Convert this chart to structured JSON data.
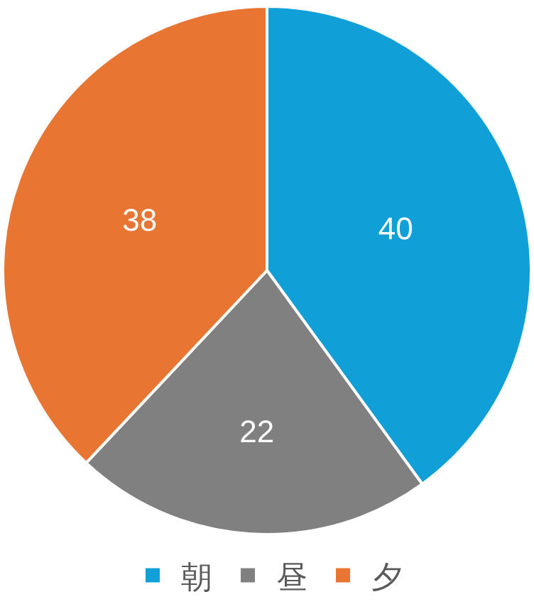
{
  "chart_data": {
    "type": "pie",
    "categories": [
      "朝",
      "昼",
      "夕"
    ],
    "values": [
      40,
      22,
      38
    ],
    "colors": [
      "#119fd8",
      "#808080",
      "#e87532"
    ],
    "data_labels": true,
    "legend": "bottom"
  }
}
